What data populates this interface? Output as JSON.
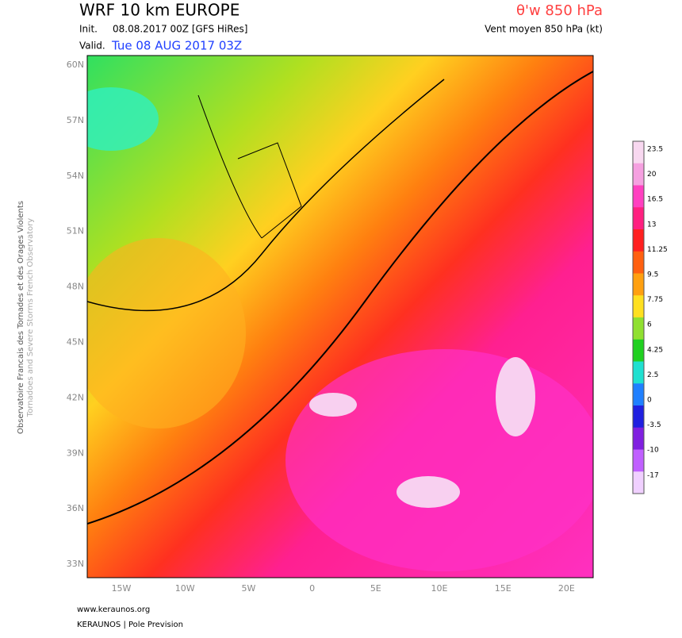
{
  "header": {
    "title": "WRF 10 km EUROPE",
    "init_label": "Init.",
    "init": "08.08.2017 00Z [GFS HiRes]",
    "valid_label": "Valid.",
    "valid": "Tue 08 AUG 2017 03Z",
    "parameter": "θ'w 850 hPa",
    "wind": "Vent moyen 850 hPa (kt)"
  },
  "map": {
    "lat_labels": [
      "60N",
      "57N",
      "54N",
      "51N",
      "48N",
      "45N",
      "42N",
      "39N",
      "36N",
      "33N"
    ],
    "lon_labels": [
      "15W",
      "10W",
      "5W",
      "0",
      "5E",
      "10E",
      "15E",
      "20E"
    ]
  },
  "colorbar": {
    "labels": [
      "23.5",
      "20",
      "16.5",
      "13",
      "11.25",
      "9.5",
      "7.75",
      "6",
      "4.25",
      "2.5",
      "0",
      "-3.5",
      "-10",
      "-17"
    ],
    "colors": [
      "#f8d8f0",
      "#f5a0e0",
      "#ff40c0",
      "#ff2080",
      "#ff2020",
      "#ff6010",
      "#ffa010",
      "#ffe020",
      "#90e030",
      "#20d020",
      "#20e0d0",
      "#2080ff",
      "#2020e0",
      "#8020e0",
      "#c060ff",
      "#f0d0ff"
    ]
  },
  "side": {
    "line1": "Observatoire Francais des Tornades et des Orages Violents",
    "line2": "Tornadoes and Severe Storms French Observatory"
  },
  "footer": {
    "url": "www.keraunos.org",
    "credit": "KERAUNOS | Pole Prevision"
  }
}
